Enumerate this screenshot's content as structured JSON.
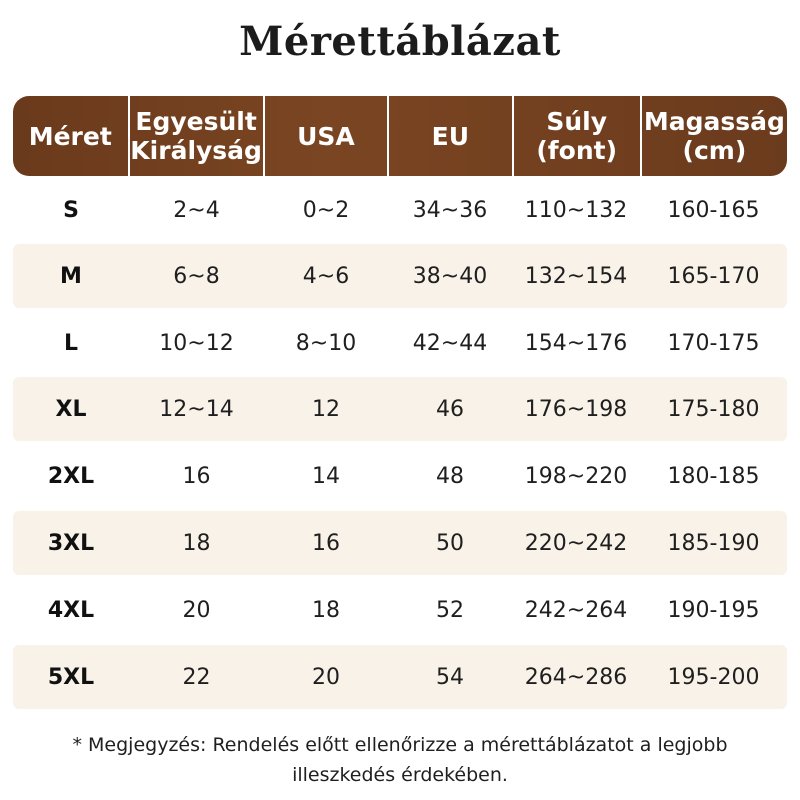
{
  "title": "Mérettáblázat",
  "header": {
    "columns": [
      "Méret",
      "Egyesült\nKirályság",
      "USA",
      "EU",
      "Súly\n(font)",
      "Magasság\n(cm)"
    ]
  },
  "rows": [
    [
      "S",
      "2~4",
      "0~2",
      "34~36",
      "110~132",
      "160-165"
    ],
    [
      "M",
      "6~8",
      "4~6",
      "38~40",
      "132~154",
      "165-170"
    ],
    [
      "L",
      "10~12",
      "8~10",
      "42~44",
      "154~176",
      "170-175"
    ],
    [
      "XL",
      "12~14",
      "12",
      "46",
      "176~198",
      "175-180"
    ],
    [
      "2XL",
      "16",
      "14",
      "48",
      "198~220",
      "180-185"
    ],
    [
      "3XL",
      "18",
      "16",
      "50",
      "220~242",
      "185-190"
    ],
    [
      "4XL",
      "20",
      "18",
      "52",
      "242~264",
      "190-195"
    ],
    [
      "5XL",
      "22",
      "20",
      "54",
      "264~286",
      "195-200"
    ]
  ],
  "note": {
    "line1": "* Megjegyzés: Rendelés előtt ellenőrizze a mérettáblázatot a legjobb",
    "line2": "illeszkedés érdekében."
  },
  "colors": {
    "header_bg": "#6a3a1c",
    "row_shade": "#f8f2e8"
  }
}
